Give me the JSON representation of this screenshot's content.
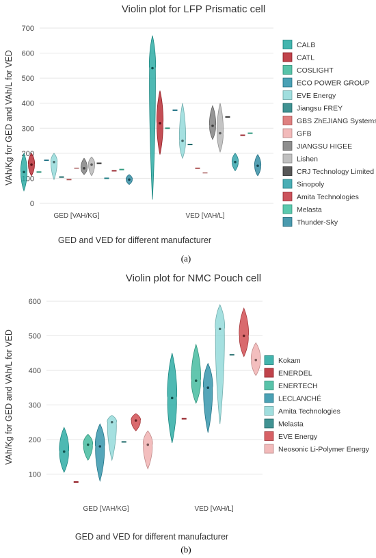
{
  "chart_data": [
    {
      "type": "violin",
      "title": "Violin plot for LFP Prismatic cell",
      "xlabel": "GED and VED for different manufacturer",
      "ylabel": "VAh/Kg for GED and VAh/L for VED",
      "categories": [
        "GED [VAH/KG]",
        "VED [VAH/L]"
      ],
      "ylim": [
        0,
        700
      ],
      "yticks": [
        0,
        100,
        200,
        300,
        400,
        500,
        600,
        700
      ],
      "legend_position": "right",
      "panel_label": "(a)",
      "series": [
        {
          "name": "CALB",
          "color": "#22A8A0",
          "values": [
            {
              "min": 50,
              "max": 200,
              "median": 125
            },
            {
              "min": 15,
              "max": 670,
              "median": 540
            }
          ]
        },
        {
          "name": "CATL",
          "color": "#B5222B",
          "values": [
            {
              "min": 110,
              "max": 200,
              "median": 155
            },
            {
              "min": 195,
              "max": 450,
              "median": 320
            }
          ]
        },
        {
          "name": "COSLIGHT",
          "color": "#3BB89A",
          "values": [
            {
              "min": 125,
              "max": 125,
              "median": 125
            },
            {
              "min": 300,
              "max": 300,
              "median": 300
            }
          ]
        },
        {
          "name": "ECO POWER GROUP",
          "color": "#2A90A8",
          "values": [
            {
              "min": 172,
              "max": 172,
              "median": 172
            },
            {
              "min": 372,
              "max": 372,
              "median": 372
            }
          ]
        },
        {
          "name": "EVE Energy",
          "color": "#8FD8D8",
          "values": [
            {
              "min": 95,
              "max": 200,
              "median": 165
            },
            {
              "min": 180,
              "max": 400,
              "median": 250
            }
          ]
        },
        {
          "name": "Jiangsu FREY",
          "color": "#1F7F7F",
          "values": [
            {
              "min": 105,
              "max": 105,
              "median": 105
            },
            {
              "min": 235,
              "max": 235,
              "median": 235
            }
          ]
        },
        {
          "name": "GBS ZhEJIANG Systems",
          "color": "#D96A6A",
          "values": [
            {
              "min": 95,
              "max": 95,
              "median": 95
            },
            {
              "min": 140,
              "max": 140,
              "median": 140
            }
          ]
        },
        {
          "name": "GFB",
          "color": "#F0AEAE",
          "values": [
            {
              "min": 140,
              "max": 140,
              "median": 140
            },
            {
              "min": 122,
              "max": 122,
              "median": 122
            }
          ]
        },
        {
          "name": "JIANGSU HIGEE",
          "color": "#7A7A7A",
          "values": [
            {
              "min": 115,
              "max": 180,
              "median": 140
            },
            {
              "min": 255,
              "max": 390,
              "median": 310
            }
          ]
        },
        {
          "name": "Lishen",
          "color": "#B5B5B5",
          "values": [
            {
              "min": 110,
              "max": 185,
              "median": 155
            },
            {
              "min": 205,
              "max": 400,
              "median": 280
            }
          ]
        },
        {
          "name": "CRJ Technology Limited",
          "color": "#3A3A3A",
          "values": [
            {
              "min": 160,
              "max": 160,
              "median": 160
            },
            {
              "min": 345,
              "max": 345,
              "median": 345
            }
          ]
        },
        {
          "name": "Sinopoly",
          "color": "#2AA0A8",
          "values": [
            {
              "min": 100,
              "max": 100,
              "median": 100
            },
            {
              "min": 130,
              "max": 200,
              "median": 165
            }
          ]
        },
        {
          "name": "Amita Technologies",
          "color": "#C23540",
          "values": [
            {
              "min": 130,
              "max": 130,
              "median": 130
            },
            {
              "min": 272,
              "max": 272,
              "median": 272
            }
          ]
        },
        {
          "name": "Melasta",
          "color": "#3EC0A0",
          "values": [
            {
              "min": 135,
              "max": 135,
              "median": 135
            },
            {
              "min": 280,
              "max": 280,
              "median": 280
            }
          ]
        },
        {
          "name": "Thunder-Sky",
          "color": "#2A88A0",
          "values": [
            {
              "min": 75,
              "max": 115,
              "median": 95
            },
            {
              "min": 110,
              "max": 195,
              "median": 150
            }
          ]
        }
      ]
    },
    {
      "type": "violin",
      "title": "Violin plot for NMC Pouch cell",
      "xlabel": "GED and VED for different manufacturer",
      "ylabel": "VAh/Kg for GED and VAh/L for VED",
      "categories": [
        "GED [VAH/KG]",
        "VED [VAH/L]"
      ],
      "ylim": [
        75,
        600
      ],
      "yticks": [
        100,
        200,
        300,
        400,
        500,
        600
      ],
      "legend_position": "right",
      "panel_label": "(b)",
      "series": [
        {
          "name": "Kokam",
          "color": "#22A8A0",
          "values": [
            {
              "min": 105,
              "max": 235,
              "median": 165
            },
            {
              "min": 190,
              "max": 450,
              "median": 320
            }
          ]
        },
        {
          "name": "ENERDEL",
          "color": "#B5222B",
          "values": [
            {
              "min": 77,
              "max": 77,
              "median": 77
            },
            {
              "min": 260,
              "max": 260,
              "median": 260
            }
          ]
        },
        {
          "name": "ENERTECH",
          "color": "#3BB89A",
          "values": [
            {
              "min": 140,
              "max": 215,
              "median": 185
            },
            {
              "min": 305,
              "max": 475,
              "median": 370
            }
          ]
        },
        {
          "name": "LECLANCHÉ",
          "color": "#2A90A8",
          "values": [
            {
              "min": 80,
              "max": 245,
              "median": 180
            },
            {
              "min": 220,
              "max": 420,
              "median": 350
            }
          ]
        },
        {
          "name": "Amita Technologies",
          "color": "#8FD8D8",
          "values": [
            {
              "min": 140,
              "max": 270,
              "median": 250
            },
            {
              "min": 245,
              "max": 590,
              "median": 520
            }
          ]
        },
        {
          "name": "Melasta",
          "color": "#1F7F7F",
          "values": [
            {
              "min": 193,
              "max": 193,
              "median": 193
            },
            {
              "min": 445,
              "max": 445,
              "median": 445
            }
          ]
        },
        {
          "name": "EVE Energy",
          "color": "#D0454A",
          "values": [
            {
              "min": 225,
              "max": 275,
              "median": 255
            },
            {
              "min": 440,
              "max": 580,
              "median": 500
            }
          ]
        },
        {
          "name": "Neosonic Li-Polymer Energy",
          "color": "#F0AEAE",
          "values": [
            {
              "min": 115,
              "max": 225,
              "median": 185
            },
            {
              "min": 385,
              "max": 480,
              "median": 430
            }
          ]
        }
      ]
    }
  ]
}
